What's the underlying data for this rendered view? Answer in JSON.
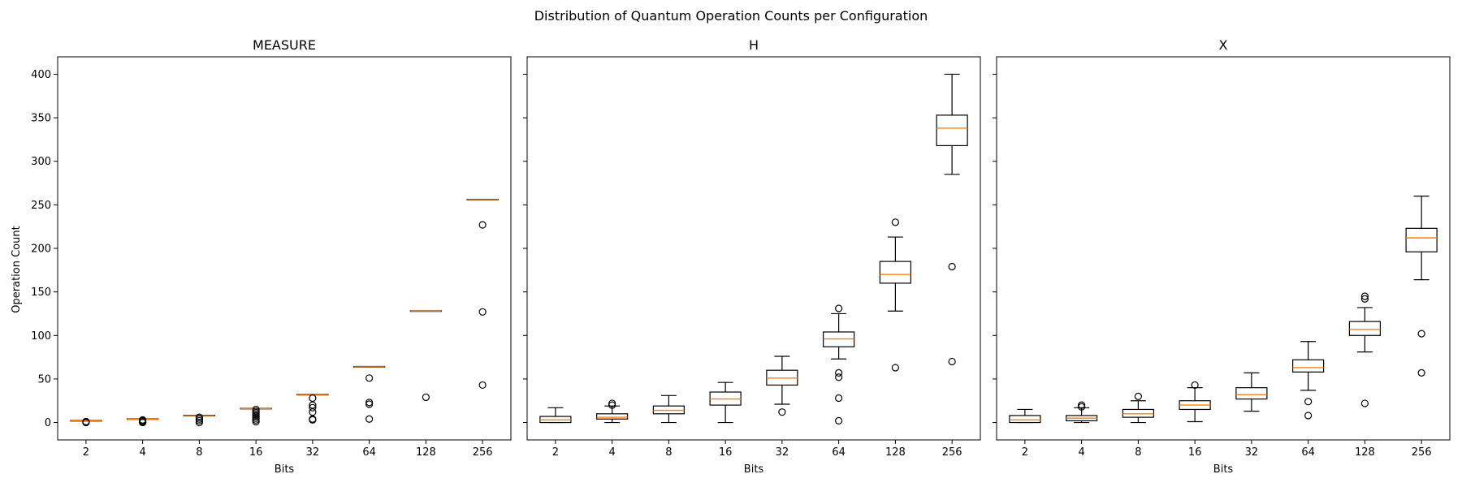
{
  "chart_data": {
    "type": "box",
    "title": "Distribution of Quantum Operation Counts per Configuration",
    "xlabel": "Bits",
    "ylabel": "Operation Count",
    "ylim": [
      -20,
      420
    ],
    "yticks": [
      0,
      50,
      100,
      150,
      200,
      250,
      300,
      350,
      400
    ],
    "categories": [
      "2",
      "4",
      "8",
      "16",
      "32",
      "64",
      "128",
      "256"
    ],
    "colors": {
      "box": "#000000",
      "median": "#ff7f0e"
    },
    "panels": [
      {
        "title": "MEASURE",
        "boxes": [
          {
            "q1": 2,
            "median": 2,
            "q3": 2,
            "whislo": 2,
            "whishi": 2,
            "fliers": [
              0,
              1,
              1
            ]
          },
          {
            "q1": 4,
            "median": 4,
            "q3": 4,
            "whislo": 4,
            "whishi": 4,
            "fliers": [
              0,
              1,
              2,
              3
            ]
          },
          {
            "q1": 8,
            "median": 8,
            "q3": 8,
            "whislo": 8,
            "whishi": 8,
            "fliers": [
              0,
              2,
              4,
              6
            ]
          },
          {
            "q1": 16,
            "median": 16,
            "q3": 16,
            "whislo": 16,
            "whishi": 16,
            "fliers": [
              1,
              3,
              5,
              7,
              9,
              11,
              13,
              15
            ]
          },
          {
            "q1": 32,
            "median": 32,
            "q3": 32,
            "whislo": 32,
            "whishi": 32,
            "fliers": [
              3,
              4,
              12,
              17,
              20,
              28
            ]
          },
          {
            "q1": 64,
            "median": 64,
            "q3": 64,
            "whislo": 64,
            "whishi": 64,
            "fliers": [
              4,
              21,
              23,
              51
            ]
          },
          {
            "q1": 128,
            "median": 128,
            "q3": 128,
            "whislo": 128,
            "whishi": 128,
            "fliers": [
              29
            ]
          },
          {
            "q1": 256,
            "median": 256,
            "q3": 256,
            "whislo": 256,
            "whishi": 256,
            "fliers": [
              43,
              127,
              227
            ]
          }
        ]
      },
      {
        "title": "H",
        "boxes": [
          {
            "q1": 0,
            "median": 3,
            "q3": 7,
            "whislo": 0,
            "whishi": 17,
            "fliers": []
          },
          {
            "q1": 4,
            "median": 6,
            "q3": 10,
            "whislo": 0,
            "whishi": 19,
            "fliers": [
              20,
              22
            ]
          },
          {
            "q1": 10,
            "median": 14,
            "q3": 19,
            "whislo": 0,
            "whishi": 31,
            "fliers": []
          },
          {
            "q1": 20,
            "median": 27,
            "q3": 35,
            "whislo": 0,
            "whishi": 46,
            "fliers": []
          },
          {
            "q1": 43,
            "median": 51,
            "q3": 60,
            "whislo": 21,
            "whishi": 76,
            "fliers": [
              12
            ]
          },
          {
            "q1": 87,
            "median": 96,
            "q3": 104,
            "whislo": 73,
            "whishi": 125,
            "fliers": [
              2,
              28,
              52,
              57,
              131
            ]
          },
          {
            "q1": 160,
            "median": 170,
            "q3": 185,
            "whislo": 128,
            "whishi": 213,
            "fliers": [
              63,
              230
            ]
          },
          {
            "q1": 318,
            "median": 338,
            "q3": 353,
            "whislo": 285,
            "whishi": 400,
            "fliers": [
              70,
              179
            ]
          }
        ]
      },
      {
        "title": "X",
        "boxes": [
          {
            "q1": 0,
            "median": 3,
            "q3": 8,
            "whislo": 0,
            "whishi": 15,
            "fliers": []
          },
          {
            "q1": 2,
            "median": 5,
            "q3": 8,
            "whislo": 0,
            "whishi": 17,
            "fliers": [
              18,
              20
            ]
          },
          {
            "q1": 6,
            "median": 10,
            "q3": 15,
            "whislo": 0,
            "whishi": 25,
            "fliers": [
              30
            ]
          },
          {
            "q1": 15,
            "median": 20,
            "q3": 25,
            "whislo": 1,
            "whishi": 40,
            "fliers": [
              43
            ]
          },
          {
            "q1": 27,
            "median": 32,
            "q3": 40,
            "whislo": 13,
            "whishi": 57,
            "fliers": []
          },
          {
            "q1": 58,
            "median": 63,
            "q3": 72,
            "whislo": 37,
            "whishi": 93,
            "fliers": [
              8,
              24
            ]
          },
          {
            "q1": 100,
            "median": 107,
            "q3": 116,
            "whislo": 81,
            "whishi": 132,
            "fliers": [
              22,
              142,
              145
            ]
          },
          {
            "q1": 196,
            "median": 212,
            "q3": 223,
            "whislo": 164,
            "whishi": 260,
            "fliers": [
              57,
              102
            ]
          }
        ]
      }
    ]
  }
}
